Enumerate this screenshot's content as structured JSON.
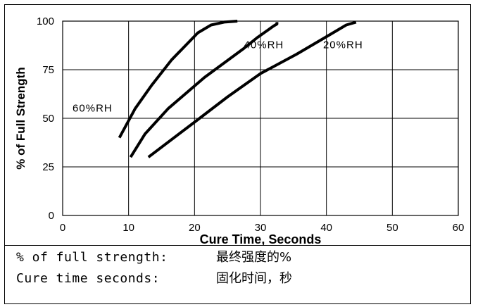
{
  "chart_data": {
    "type": "line",
    "title": "",
    "xlabel": "Cure Time, Seconds",
    "ylabel": "% of Full Strength",
    "xlim": [
      0,
      60
    ],
    "ylim": [
      0,
      100
    ],
    "xticks": [
      0,
      10,
      20,
      30,
      40,
      50,
      60
    ],
    "yticks": [
      0,
      25,
      50,
      75,
      100
    ],
    "grid": true,
    "series": [
      {
        "name": "60%RH",
        "points": [
          [
            8.6,
            40
          ],
          [
            11,
            55
          ],
          [
            13.5,
            67
          ],
          [
            16.5,
            80
          ],
          [
            20.5,
            94
          ],
          [
            22.5,
            98
          ],
          [
            24.5,
            99.5
          ],
          [
            26.5,
            100
          ]
        ]
      },
      {
        "name": "40%RH",
        "points": [
          [
            10.3,
            30
          ],
          [
            12.5,
            42
          ],
          [
            16,
            55
          ],
          [
            21.5,
            71
          ],
          [
            27.5,
            86
          ],
          [
            29.5,
            91.5
          ],
          [
            32,
            97.5
          ],
          [
            32.5,
            98.5
          ],
          [
            32.5,
            99.5
          ]
        ]
      },
      {
        "name": "20%RH",
        "points": [
          [
            13,
            30
          ],
          [
            20,
            48
          ],
          [
            25,
            61
          ],
          [
            30,
            73
          ],
          [
            35.5,
            83
          ],
          [
            40,
            92
          ],
          [
            43,
            98
          ],
          [
            44.5,
            99.5
          ]
        ]
      }
    ]
  },
  "legend": {
    "row1_en": "% of full strength:",
    "row1_cn": "最终强度的%",
    "row2_en": "Cure time seconds:",
    "row2_cn": "固化时间，秒"
  }
}
